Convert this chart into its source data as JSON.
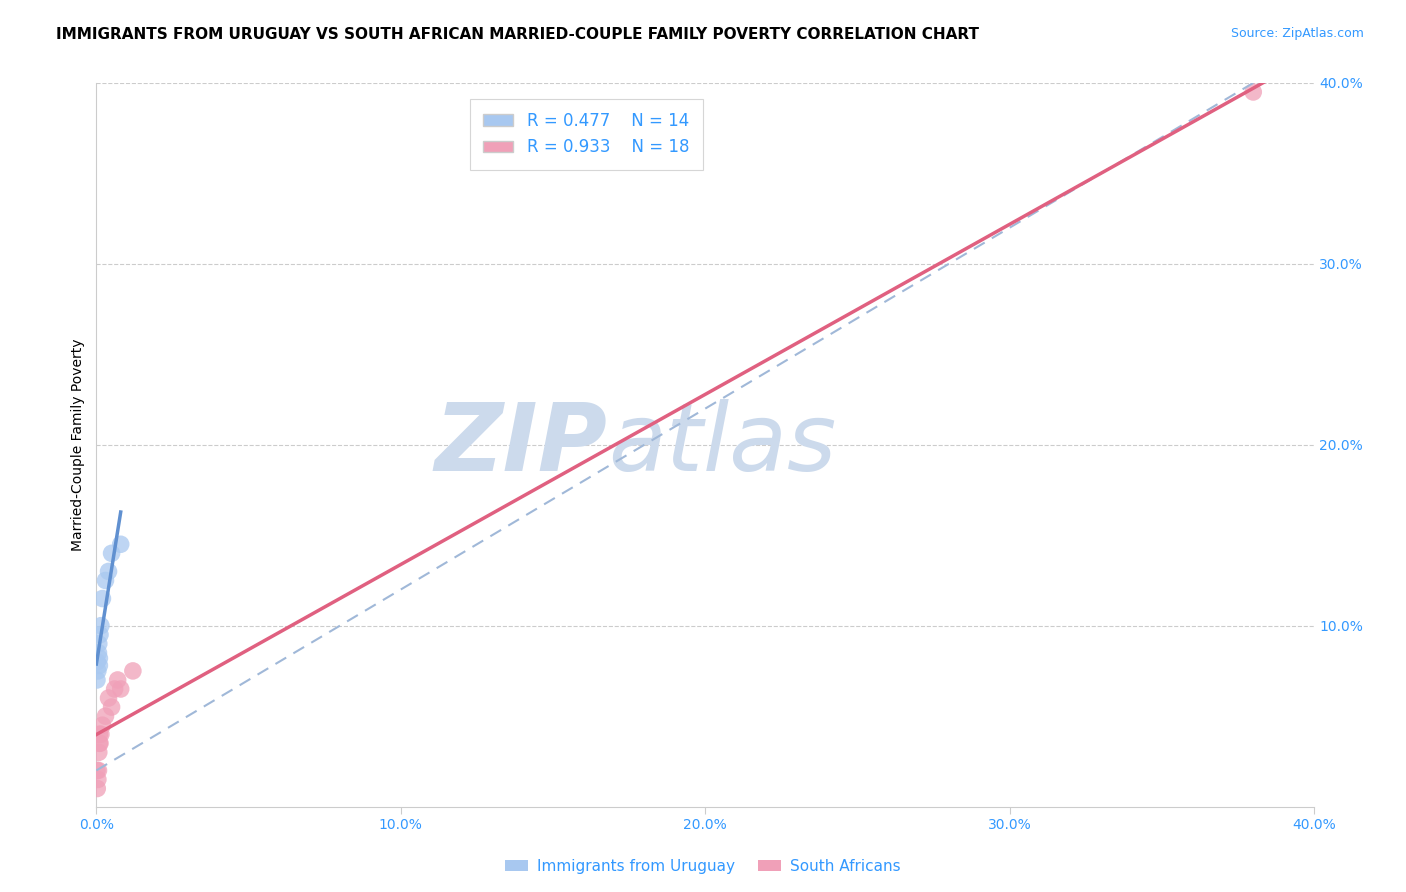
{
  "title": "IMMIGRANTS FROM URUGUAY VS SOUTH AFRICAN MARRIED-COUPLE FAMILY POVERTY CORRELATION CHART",
  "source": "Source: ZipAtlas.com",
  "ylabel": "Married-Couple Family Poverty",
  "legend_labels": [
    "Immigrants from Uruguay",
    "South Africans"
  ],
  "r_uruguay": 0.477,
  "n_uruguay": 14,
  "r_southafrica": 0.933,
  "n_southafrica": 18,
  "uruguay_x": [
    0.0002,
    0.0003,
    0.0005,
    0.0007,
    0.0008,
    0.001,
    0.001,
    0.0012,
    0.0015,
    0.002,
    0.003,
    0.004,
    0.005,
    0.008
  ],
  "uruguay_y": [
    0.07,
    0.08,
    0.075,
    0.085,
    0.09,
    0.078,
    0.082,
    0.095,
    0.1,
    0.115,
    0.125,
    0.13,
    0.14,
    0.145
  ],
  "southafrica_x": [
    0.0002,
    0.0003,
    0.0005,
    0.0007,
    0.0008,
    0.001,
    0.001,
    0.0012,
    0.0015,
    0.002,
    0.003,
    0.004,
    0.005,
    0.006,
    0.007,
    0.008,
    0.012,
    0.38
  ],
  "southafrica_y": [
    0.02,
    0.01,
    0.015,
    0.02,
    0.03,
    0.035,
    0.04,
    0.035,
    0.04,
    0.045,
    0.05,
    0.06,
    0.055,
    0.065,
    0.07,
    0.065,
    0.075,
    0.395
  ],
  "blue_scatter_color": "#a8c8f0",
  "pink_scatter_color": "#f0a0b8",
  "blue_line_color": "#6090d0",
  "pink_line_color": "#e06080",
  "blue_dashed_color": "#a0b8d8",
  "axis_tick_color": "#3399ff",
  "xlim": [
    0,
    0.4
  ],
  "ylim": [
    0,
    0.4
  ],
  "xticks": [
    0.0,
    0.1,
    0.2,
    0.3,
    0.4
  ],
  "yticks": [
    0.0,
    0.1,
    0.2,
    0.3,
    0.4
  ],
  "background_color": "#ffffff",
  "grid_color": "#cccccc",
  "watermark_zip": "ZIP",
  "watermark_atlas": "atlas",
  "watermark_color": "#ccdaec",
  "title_fontsize": 11,
  "axis_fontsize": 10,
  "legend_fontsize": 12
}
